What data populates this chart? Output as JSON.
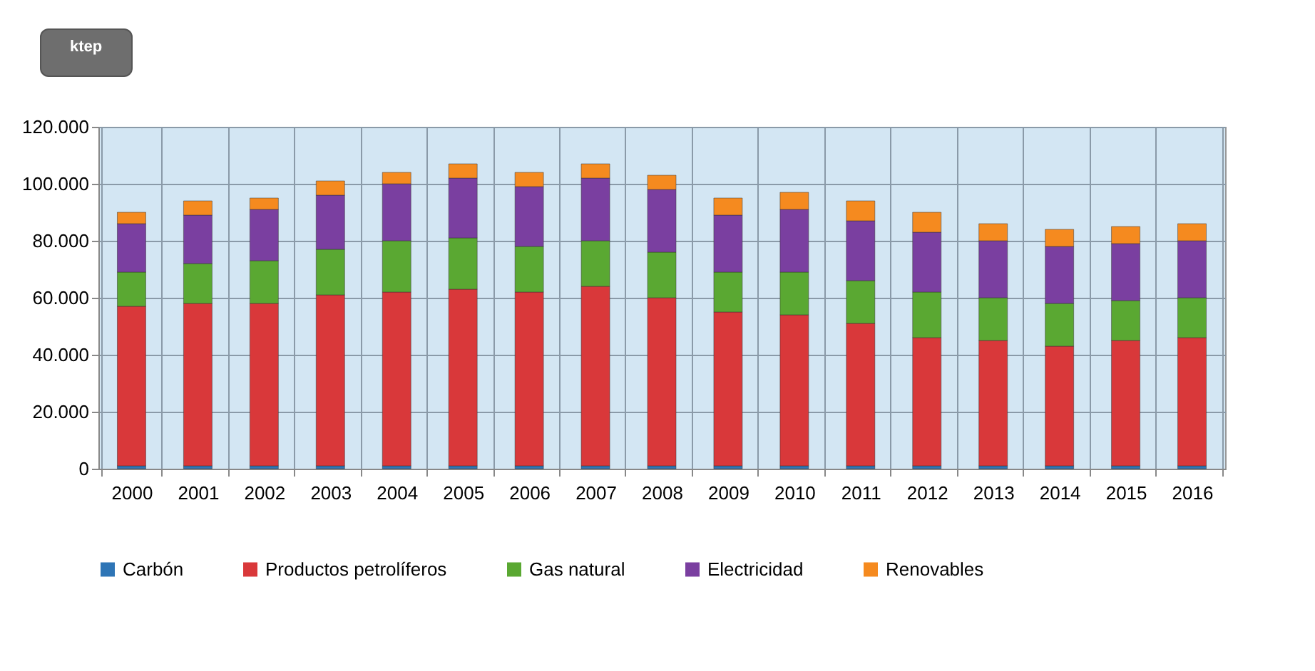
{
  "chart_data": {
    "type": "bar",
    "stacked": true,
    "annotations": [
      "ktep"
    ],
    "categories": [
      "2000",
      "2001",
      "2002",
      "2003",
      "2004",
      "2005",
      "2006",
      "2007",
      "2008",
      "2009",
      "2010",
      "2011",
      "2012",
      "2013",
      "2014",
      "2015",
      "2016"
    ],
    "series": [
      {
        "name": "Carbón",
        "color": "#2e75b6",
        "values": [
          1000,
          1000,
          1000,
          1000,
          1000,
          1000,
          1000,
          1000,
          1000,
          1000,
          1000,
          1000,
          1000,
          1000,
          1000,
          1000,
          1000
        ]
      },
      {
        "name": "Productos petrolíferos",
        "color": "#d9383a",
        "values": [
          56000,
          57000,
          57000,
          60000,
          61000,
          62000,
          61000,
          63000,
          59000,
          54000,
          53000,
          50000,
          45000,
          44000,
          42000,
          44000,
          45000
        ]
      },
      {
        "name": "Gas natural",
        "color": "#5aa832",
        "values": [
          12000,
          14000,
          15000,
          16000,
          18000,
          18000,
          16000,
          16000,
          16000,
          14000,
          15000,
          15000,
          16000,
          15000,
          15000,
          14000,
          14000
        ]
      },
      {
        "name": "Electricidad",
        "color": "#7a3fa0",
        "values": [
          17000,
          17000,
          18000,
          19000,
          20000,
          21000,
          21000,
          22000,
          22000,
          20000,
          22000,
          21000,
          21000,
          20000,
          20000,
          20000,
          20000
        ]
      },
      {
        "name": "Renovables",
        "color": "#f58a1f",
        "values": [
          4000,
          5000,
          4000,
          5000,
          4000,
          5000,
          5000,
          5000,
          5000,
          6000,
          6000,
          7000,
          7000,
          6000,
          6000,
          6000,
          6000
        ]
      }
    ],
    "ylim": [
      0,
      120000
    ],
    "yticks": [
      {
        "value": 0,
        "label": "0"
      },
      {
        "value": 20000,
        "label": "20.000"
      },
      {
        "value": 40000,
        "label": "40.000"
      },
      {
        "value": 60000,
        "label": "60.000"
      },
      {
        "value": 80000,
        "label": "80.000"
      },
      {
        "value": 100000,
        "label": "100.000"
      },
      {
        "value": 120000,
        "label": "120.000"
      }
    ],
    "grid": true,
    "legend": "bottom"
  }
}
